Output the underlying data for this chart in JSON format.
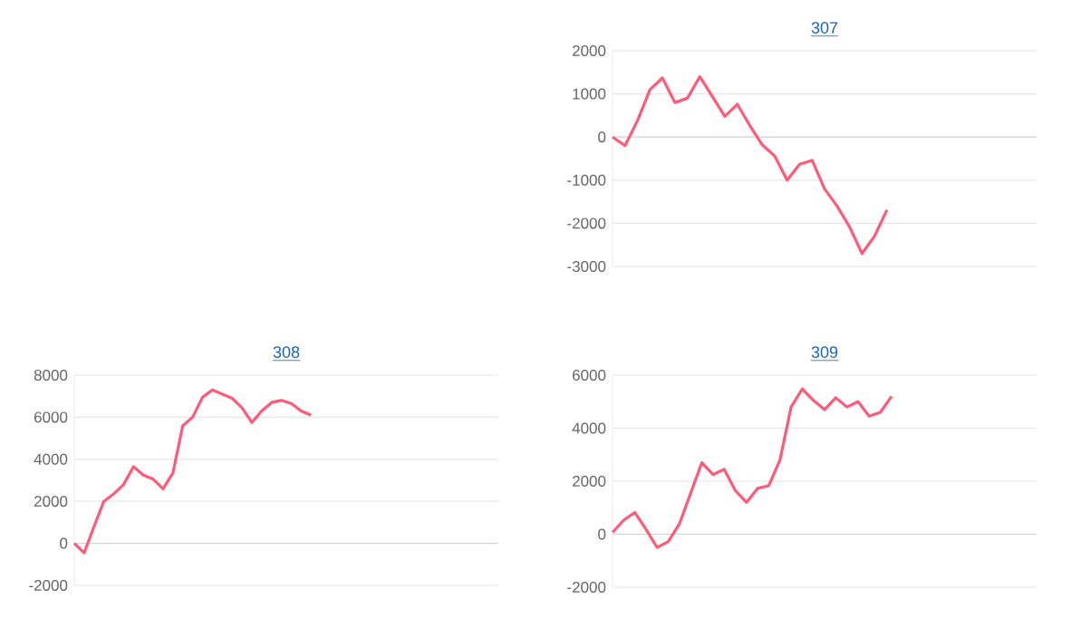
{
  "chart_data": [
    {
      "type": "line",
      "title": "307",
      "categories": [
        null,
        null,
        null,
        null,
        null,
        null,
        null,
        null,
        null,
        null,
        null,
        null,
        null,
        null,
        null,
        null,
        null,
        null,
        null,
        null,
        null,
        null,
        null,
        null,
        null,
        null,
        null,
        null,
        null,
        null,
        null,
        null,
        null,
        null,
        null
      ],
      "values": [
        0,
        -200,
        380,
        1100,
        1370,
        800,
        900,
        1400,
        940,
        480,
        760,
        270,
        -180,
        -440,
        -1000,
        -630,
        -540,
        -1200,
        -1600,
        -2080,
        -2700,
        -2300,
        -1690,
        null,
        null,
        null,
        null,
        null,
        null,
        null,
        null,
        null,
        null,
        null,
        null
      ],
      "color": "#ff5b78",
      "ylim": [
        -3000,
        2000
      ],
      "yticks": [
        -3000,
        -2000,
        -1000,
        0,
        1000,
        2000
      ],
      "grid": "y",
      "tick_labels": "y"
    },
    {
      "type": "line",
      "title": "308",
      "categories": [
        null,
        null,
        null,
        null,
        null,
        null,
        null,
        null,
        null,
        null,
        null,
        null,
        null,
        null,
        null,
        null,
        null,
        null,
        null,
        null,
        null,
        null,
        null,
        null,
        null,
        null,
        null,
        null,
        null,
        null,
        null,
        null,
        null,
        null,
        null,
        null,
        null,
        null,
        null,
        null,
        null,
        null,
        null,
        null
      ],
      "values": [
        0,
        -450,
        800,
        2000,
        2350,
        2800,
        3650,
        3250,
        3050,
        2600,
        3350,
        5600,
        6000,
        6950,
        7300,
        7100,
        6900,
        6450,
        5750,
        6300,
        6700,
        6800,
        6650,
        6300,
        6100,
        null,
        null,
        null,
        null,
        null,
        null,
        null,
        null,
        null,
        null,
        null,
        null,
        null,
        null,
        null,
        null,
        null,
        null,
        null
      ],
      "color": "#ff5b78",
      "ylim": [
        -2000,
        8000
      ],
      "yticks": [
        -2000,
        0,
        2000,
        4000,
        6000,
        8000
      ],
      "grid": "y",
      "tick_labels": "y"
    },
    {
      "type": "line",
      "title": "309",
      "categories": [
        null,
        null,
        null,
        null,
        null,
        null,
        null,
        null,
        null,
        null,
        null,
        null,
        null,
        null,
        null,
        null,
        null,
        null,
        null,
        null,
        null,
        null,
        null,
        null,
        null,
        null,
        null,
        null,
        null,
        null,
        null,
        null,
        null,
        null,
        null,
        null,
        null,
        null,
        null
      ],
      "values": [
        70,
        530,
        820,
        180,
        -500,
        -280,
        400,
        1550,
        2700,
        2250,
        2450,
        1650,
        1200,
        1730,
        1830,
        2800,
        4800,
        5480,
        5050,
        4700,
        5150,
        4800,
        5000,
        4450,
        4600,
        5200,
        null,
        null,
        null,
        null,
        null,
        null,
        null,
        null,
        null,
        null,
        null,
        null,
        null
      ],
      "color": "#ff5b78",
      "ylim": [
        -2000,
        6000
      ],
      "yticks": [
        -2000,
        0,
        2000,
        4000,
        6000
      ],
      "grid": "y",
      "tick_labels": "y"
    }
  ]
}
